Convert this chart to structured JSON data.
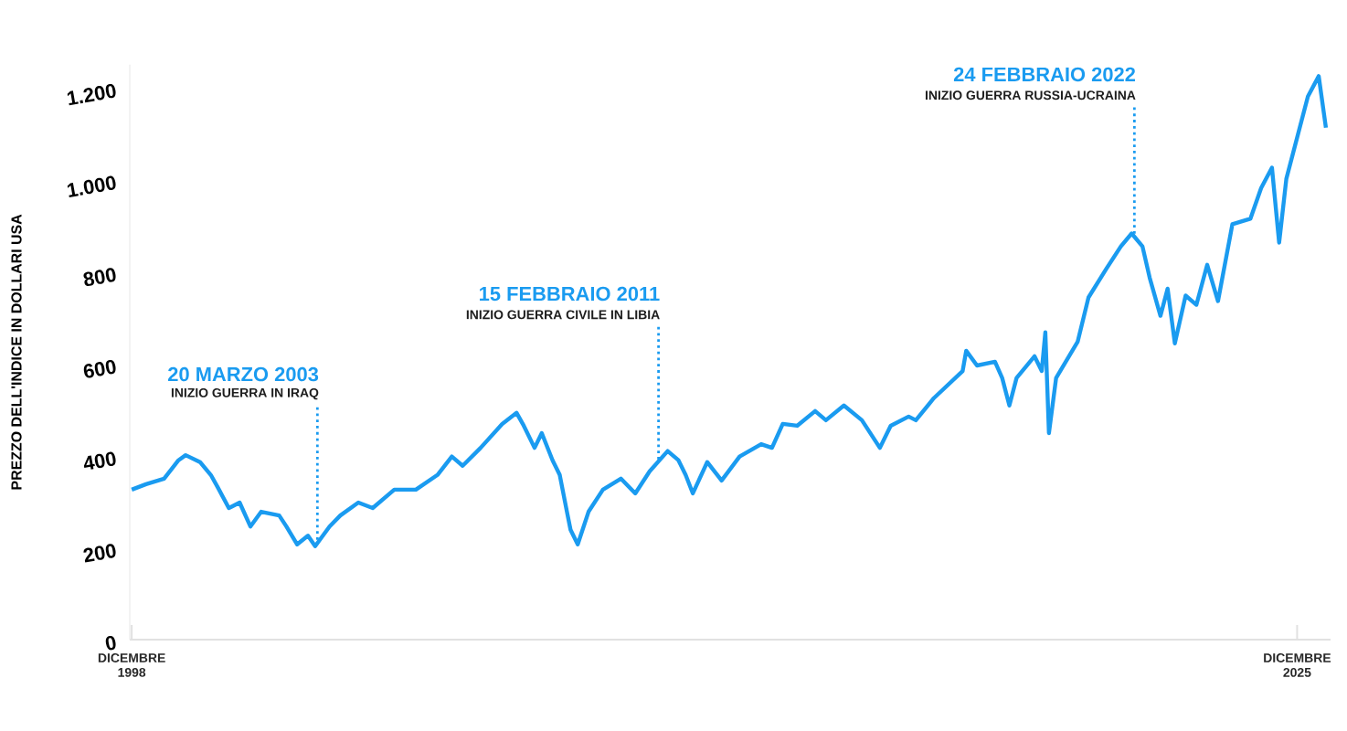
{
  "chart_data": {
    "type": "line",
    "ylabel": "PREZZO DELL'INDICE IN DOLLARI USA",
    "x": [
      "1998-12",
      "1999-04",
      "1999-09",
      "2000-01",
      "2000-03",
      "2000-07",
      "2000-10",
      "2000-12",
      "2001-03",
      "2001-06",
      "2001-09",
      "2001-12",
      "2002-05",
      "2002-07",
      "2002-10",
      "2003-01",
      "2003-03",
      "2003-07",
      "2003-10",
      "2004-03",
      "2004-07",
      "2005-01",
      "2005-07",
      "2006-01",
      "2006-05",
      "2006-08",
      "2007-01",
      "2007-07",
      "2007-11",
      "2008-01",
      "2008-04",
      "2008-06",
      "2008-09",
      "2008-11",
      "2009-01",
      "2009-02",
      "2009-04",
      "2009-07",
      "2009-11",
      "2010-04",
      "2010-08",
      "2010-12",
      "2011-05",
      "2011-08",
      "2011-10",
      "2011-12",
      "2012-04",
      "2012-08",
      "2013-01",
      "2013-07",
      "2013-10",
      "2014-01",
      "2014-05",
      "2014-10",
      "2015-01",
      "2015-06",
      "2015-11",
      "2016-04",
      "2016-07",
      "2016-12",
      "2017-02",
      "2017-07",
      "2018-03",
      "2018-04",
      "2018-07",
      "2018-12",
      "2019-02",
      "2019-04",
      "2019-06",
      "2019-11",
      "2020-01",
      "2020-02",
      "2020-03",
      "2020-05",
      "2020-11",
      "2021-02",
      "2021-07",
      "2021-11",
      "2022-02",
      "2022-05",
      "2022-07",
      "2022-10",
      "2022-12",
      "2023-02",
      "2023-05",
      "2023-08",
      "2023-11",
      "2024-02",
      "2024-06",
      "2024-11",
      "2025-02",
      "2025-05",
      "2025-07",
      "2025-09",
      "2026-03",
      "2026-06",
      "2026-08"
    ],
    "series": [
      {
        "color": "#1a9bf0",
        "values": [
          326,
          338,
          350,
          390,
          401,
          386,
          358,
          330,
          286,
          298,
          246,
          278,
          270,
          246,
          207,
          226,
          203,
          246,
          270,
          298,
          286,
          326,
          326,
          358,
          398,
          378,
          417,
          469,
          493,
          465,
          417,
          449,
          390,
          358,
          278,
          239,
          207,
          278,
          326,
          350,
          318,
          366,
          410,
          390,
          358,
          318,
          386,
          346,
          398,
          425,
          417,
          469,
          465,
          497,
          477,
          509,
          477,
          417,
          465,
          485,
          477,
          525,
          584,
          628,
          596,
          604,
          569,
          509,
          569,
          616,
          584,
          668,
          449,
          569,
          648,
          744,
          807,
          855,
          883,
          855,
          787,
          704,
          763,
          644,
          748,
          728,
          815,
          736,
          903,
          915,
          982,
          1026,
          863,
          1002,
          1181,
          1225,
          1113
        ]
      }
    ],
    "xlim": [
      "1998-11-15",
      "2026-09-10"
    ],
    "ylim": [
      0,
      1250
    ],
    "xticks": [
      {
        "value": "1998-12",
        "label": "DICEMBRE 1998"
      },
      {
        "value": "2025-12",
        "label": "DICEMBRE 2025"
      }
    ],
    "yticks": [
      0,
      200,
      400,
      600,
      800,
      {
        "value": 1000,
        "label": "1.000"
      },
      {
        "value": 1200,
        "label": "1.200"
      }
    ],
    "ref_lines": [
      {
        "axis": "x",
        "value": "2003-03-20",
        "label": "20 MARZO 2003",
        "color": "#1a9bf0",
        "line_style": "dotted"
      },
      {
        "axis": "x",
        "value": "2011-02-15",
        "label": "15 FEBBRAIO 2011",
        "color": "#1a9bf0",
        "line_style": "dotted"
      },
      {
        "axis": "x",
        "value": "2022-02-24",
        "label": "24 FEBBRAIO 2022",
        "color": "#1a9bf0",
        "line_style": "dotted"
      }
    ],
    "annotations": [
      {
        "text": "INIZIO GUERRA IN IRAQ",
        "x": "2003-03-20",
        "y": 517
      },
      {
        "text": "INIZIO GUERRA CIVILE IN LIBIA",
        "x": "2011-02-15",
        "y": 692
      },
      {
        "text": "INIZIO GUERRA RUSSIA-UCRAINA",
        "x": "2022-02-24",
        "y": 1169
      }
    ],
    "grid": false,
    "marker": "none",
    "line_style": "solid"
  }
}
